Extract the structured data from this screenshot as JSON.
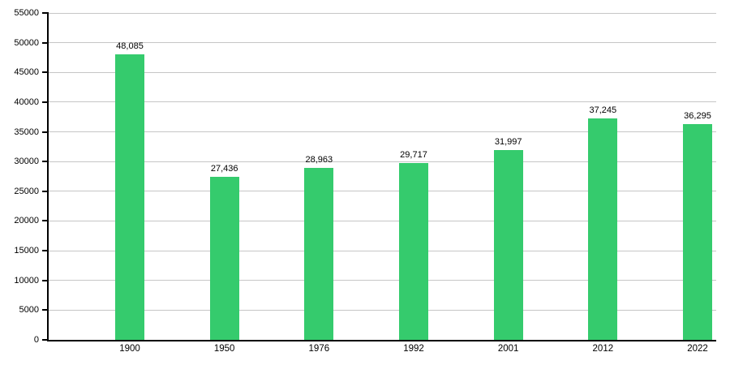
{
  "chart_data": {
    "type": "bar",
    "title": "",
    "xlabel": "",
    "ylabel": "",
    "categories": [
      "1900",
      "1950",
      "1976",
      "1992",
      "2001",
      "2012",
      "2022"
    ],
    "values": [
      48085,
      27436,
      28963,
      29717,
      31997,
      37245,
      36295
    ],
    "value_labels": [
      "48,085",
      "27,436",
      "28,963",
      "29,717",
      "31,997",
      "37,245",
      "36,295"
    ],
    "ylim": [
      0,
      55000
    ],
    "ytick_step": 5000,
    "ytick_labels": [
      "0",
      "5000",
      "10000",
      "15000",
      "20000",
      "25000",
      "30000",
      "35000",
      "40000",
      "45000",
      "50000",
      "55000"
    ],
    "grid": true,
    "legend": false,
    "colors": {
      "bar": "#35cb6d",
      "gridline": "#c6c6c6",
      "axis": "#000000",
      "text": "#000000",
      "background": "#ffffff"
    }
  }
}
